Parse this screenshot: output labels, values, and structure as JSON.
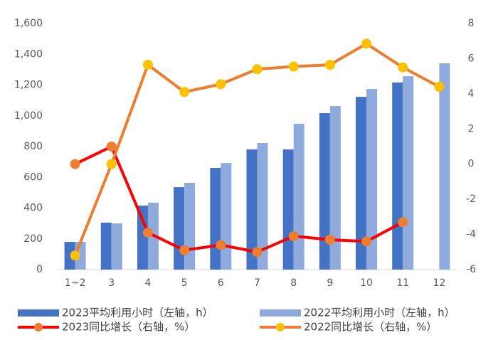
{
  "chart_data": {
    "type": "combo",
    "categories": [
      "1~2",
      "3",
      "4",
      "5",
      "6",
      "7",
      "8",
      "9",
      "10",
      "11",
      "12"
    ],
    "series": [
      {
        "name": "2023平均利用小时（左轴，h）",
        "type": "bar",
        "color": "#4472c4",
        "values": [
          180,
          305,
          416,
          536,
          661,
          781,
          781,
          1017,
          1123,
          1216,
          null
        ]
      },
      {
        "name": "2022平均利用小时（左轴，h）",
        "type": "bar",
        "color": "#8faadc",
        "values": [
          180,
          300,
          435,
          564,
          693,
          823,
          948,
          1063,
          1174,
          1257,
          1341
        ]
      },
      {
        "name": "2023同比增长（右轴，%）",
        "type": "line",
        "axis": "y2",
        "color": "#ff0000",
        "marker_color": "#ed7d31",
        "values": [
          0.0,
          1.0,
          -3.9,
          -4.9,
          -4.6,
          -5.0,
          -4.1,
          -4.3,
          -4.4,
          -3.3,
          null
        ]
      },
      {
        "name": "2022同比增长（右轴，%）",
        "type": "line",
        "axis": "y2",
        "color": "#ed7d31",
        "marker_color": "#ffc000",
        "values": [
          -5.2,
          0.0,
          5.65,
          4.1,
          4.55,
          5.4,
          5.55,
          5.65,
          6.85,
          5.5,
          4.4
        ]
      }
    ],
    "ylim": [
      0,
      1600
    ],
    "yticks": [
      0,
      200,
      400,
      600,
      800,
      {
        "value": 1000,
        "label": "1,000"
      },
      {
        "value": 1200,
        "label": "1,200"
      },
      {
        "value": 1400,
        "label": "1,400"
      },
      {
        "value": 1600,
        "label": "1,600"
      }
    ],
    "y2lim": [
      -6,
      8
    ],
    "y2ticks": [
      -6,
      -4,
      -2,
      0,
      2,
      4,
      6,
      8
    ],
    "legend": "bottom"
  }
}
